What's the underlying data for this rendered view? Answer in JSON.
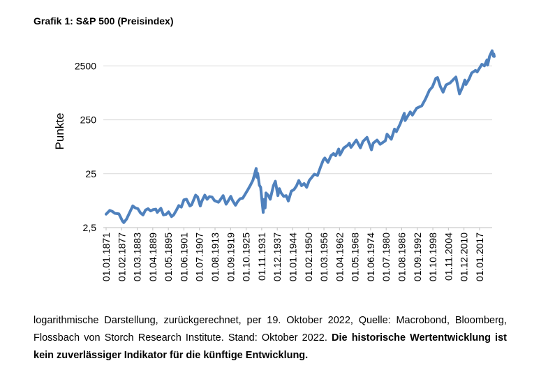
{
  "chart_data": {
    "type": "line",
    "title": "Grafik 1: S&P 500 (Preisindex)",
    "ylabel": "Punkte",
    "note": "logarithmische Darstellung, zurückgerechnet, per 19. Oktober 2022, Quelle: Macrobond, Bloomberg, Flossbach von Storch Research Institute. Stand: Oktober 2022.",
    "note_bold": "Die historische Wertentwicklung ist kein zuverlässiger Indikator für die künftige Entwicklung.",
    "log_scale": true,
    "grid": true,
    "color": "#4f81bd",
    "ylim": [
      2.5,
      6000
    ],
    "yticks": [
      {
        "value": 2.5,
        "label": "2,5"
      },
      25,
      250,
      2500
    ],
    "xlim": [
      "01.01.1871",
      "01.10.2022"
    ],
    "xticks": [
      "01.01.1871",
      "01.02.1877",
      "01.03.1883",
      "01.04.1889",
      "01.05.1895",
      "01.06.1901",
      "01.07.1907",
      "01.08.1913",
      "01.09.1919",
      "01.10.1925",
      "01.11.1931",
      "01.12.1937",
      "01.01.1944",
      "01.02.1950",
      "01.03.1956",
      "01.04.1962",
      "01.05.1968",
      "01.06.1974",
      "01.07.1980",
      "01.08.1986",
      "01.09.1992",
      "01.10.1998",
      "01.11.2004",
      "01.12.2010",
      "01.01.2017"
    ],
    "series": [
      {
        "name": "S&P 500",
        "color": "#4f81bd",
        "x": [
          "01.01.1871",
          "01.06.1872",
          "01.06.1873",
          "01.06.1874",
          "01.01.1876",
          "01.06.1877",
          "01.12.1877",
          "01.01.1879",
          "01.06.1880",
          "01.06.1881",
          "01.06.1882",
          "01.06.1883",
          "01.06.1884",
          "01.06.1885",
          "01.06.1886",
          "01.06.1887",
          "01.06.1888",
          "01.06.1889",
          "01.06.1890",
          "01.01.1891",
          "01.06.1892",
          "01.06.1893",
          "01.06.1894",
          "01.06.1895",
          "01.08.1896",
          "01.06.1897",
          "01.06.1898",
          "01.06.1899",
          "01.06.1900",
          "01.06.1901",
          "01.06.1902",
          "01.10.1903",
          "01.06.1904",
          "01.06.1905",
          "01.01.1906",
          "01.10.1906",
          "01.11.1907",
          "01.06.1908",
          "01.08.1909",
          "01.07.1910",
          "01.06.1911",
          "01.06.1912",
          "01.06.1913",
          "01.12.1914",
          "01.06.1915",
          "01.10.1916",
          "01.12.1917",
          "01.06.1918",
          "01.10.1919",
          "01.06.1920",
          "01.08.1921",
          "01.06.1922",
          "01.06.1923",
          "01.06.1924",
          "01.06.1925",
          "01.06.1926",
          "01.06.1927",
          "01.06.1928",
          "01.09.1929",
          "01.12.1929",
          "01.04.1930",
          "01.12.1930",
          "01.06.1931",
          "01.12.1931",
          "01.06.1932",
          "01.09.1932",
          "01.03.1933",
          "01.07.1933",
          "01.06.1934",
          "01.03.1935",
          "01.06.1936",
          "01.03.1937",
          "01.03.1938",
          "01.10.1938",
          "01.06.1939",
          "01.06.1940",
          "01.06.1941",
          "01.04.1942",
          "01.06.1943",
          "01.06.1944",
          "01.06.1945",
          "01.05.1946",
          "01.06.1947",
          "01.06.1948",
          "01.06.1949",
          "01.06.1950",
          "01.06.1951",
          "01.06.1952",
          "01.09.1953",
          "01.12.1954",
          "01.12.1955",
          "01.07.1956",
          "01.10.1957",
          "01.12.1958",
          "01.12.1959",
          "01.10.1960",
          "01.12.1961",
          "01.06.1962",
          "01.12.1963",
          "01.06.1965",
          "01.02.1966",
          "01.10.1966",
          "01.11.1968",
          "01.06.1970",
          "01.06.1971",
          "01.01.1973",
          "01.10.1974",
          "01.06.1975",
          "01.12.1976",
          "01.03.1978",
          "01.03.1980",
          "01.11.1980",
          "01.07.1982",
          "01.10.1983",
          "01.07.1984",
          "01.12.1985",
          "01.08.1987",
          "01.12.1987",
          "01.12.1989",
          "01.10.1990",
          "01.06.1992",
          "01.06.1994",
          "01.12.1995",
          "01.06.1997",
          "01.08.1998",
          "01.12.1999",
          "01.08.2000",
          "01.09.2001",
          "01.10.2002",
          "01.12.2003",
          "01.06.2005",
          "01.12.2006",
          "01.10.2007",
          "01.11.2008",
          "01.03.2009",
          "01.06.2010",
          "01.04.2011",
          "01.09.2011",
          "01.12.2012",
          "01.12.2013",
          "01.06.2015",
          "01.02.2016",
          "01.12.2017",
          "01.12.2018",
          "01.12.2019",
          "01.03.2020",
          "01.12.2020",
          "01.12.2021",
          "01.06.2022",
          "01.08.2022",
          "01.10.2022"
        ],
        "values": [
          4.44,
          5.2,
          5.0,
          4.6,
          4.5,
          3.3,
          3.1,
          3.6,
          5.0,
          6.3,
          5.8,
          5.6,
          4.7,
          4.3,
          5.3,
          5.6,
          5.1,
          5.4,
          5.5,
          4.8,
          5.7,
          4.3,
          4.4,
          4.9,
          4.0,
          4.3,
          5.2,
          6.4,
          6.0,
          8.2,
          8.4,
          6.3,
          6.6,
          8.6,
          10.0,
          9.3,
          6.3,
          7.7,
          10.0,
          8.4,
          9.4,
          9.2,
          7.9,
          7.4,
          7.9,
          9.8,
          6.8,
          7.4,
          9.5,
          8.0,
          6.5,
          7.6,
          8.6,
          8.8,
          10.5,
          12.6,
          15.3,
          19.0,
          31.3,
          21.5,
          25.5,
          15.3,
          14.0,
          8.1,
          4.8,
          8.3,
          5.8,
          11.0,
          9.9,
          8.4,
          15.0,
          18.1,
          9.8,
          13.2,
          11.0,
          9.5,
          9.8,
          7.8,
          11.9,
          12.6,
          14.8,
          18.7,
          15.0,
          16.4,
          14.0,
          18.7,
          21.4,
          24.5,
          23.3,
          34.0,
          45.0,
          48.8,
          40.5,
          54.0,
          59.0,
          54.0,
          71.7,
          55.6,
          75.0,
          84.0,
          92.0,
          77.0,
          105.0,
          75.6,
          99.0,
          118.0,
          69.4,
          92.0,
          105.0,
          88.0,
          102.0,
          135.0,
          109.0,
          168.0,
          151.0,
          207.0,
          330.0,
          242.0,
          350.0,
          306.0,
          410.0,
          454.0,
          615.0,
          885.0,
          1020.0,
          1469.0,
          1517.0,
          1040.0,
          815.0,
          1112.0,
          1200.0,
          1418.0,
          1549.0,
          896.0,
          757.0,
          1030.0,
          1363.0,
          1131.0,
          1426.0,
          1848.0,
          2063.0,
          1932.0,
          2674.0,
          2507.0,
          3230.0,
          2585.0,
          3756.0,
          4766.0,
          3785.0,
          4158.0,
          3752.0
        ]
      }
    ]
  }
}
